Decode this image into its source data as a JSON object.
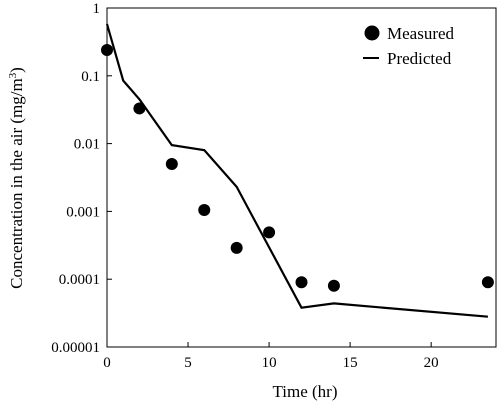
{
  "chart_data": {
    "type": "scatter",
    "xlabel": "Time (hr)",
    "ylabel_main": "Concentration in the air (mg/m",
    "ylabel_sup": "3",
    "ylabel_close": ")",
    "xlim": [
      0,
      24
    ],
    "ylim": [
      1e-05,
      1
    ],
    "yscale": "log",
    "grid": false,
    "legend_position": "top-right",
    "x_ticks": [
      0,
      5,
      10,
      15,
      20
    ],
    "x_tick_labels": [
      "0",
      "5",
      "10",
      "15",
      "20"
    ],
    "y_ticks": [
      1,
      0.1,
      0.01,
      0.001,
      0.0001,
      1e-05
    ],
    "y_tick_labels": [
      "1",
      "0.1",
      "0.01",
      "0.001",
      "0.0001",
      "0.00001"
    ],
    "series": [
      {
        "name": "Measured",
        "mark": "marker",
        "color": "#000000",
        "points": [
          {
            "x": 0,
            "y": 0.24
          },
          {
            "x": 2,
            "y": 0.033
          },
          {
            "x": 4,
            "y": 0.005
          },
          {
            "x": 6,
            "y": 0.00105
          },
          {
            "x": 8,
            "y": 0.00029
          },
          {
            "x": 10,
            "y": 0.00049
          },
          {
            "x": 12,
            "y": 9e-05
          },
          {
            "x": 14,
            "y": 8e-05
          },
          {
            "x": 23.5,
            "y": 9e-05
          }
        ]
      },
      {
        "name": "Predicted",
        "mark": "line",
        "color": "#000000",
        "points": [
          {
            "x": 0,
            "y": 0.58
          },
          {
            "x": 1,
            "y": 0.085
          },
          {
            "x": 2,
            "y": 0.045
          },
          {
            "x": 4,
            "y": 0.0095
          },
          {
            "x": 6,
            "y": 0.008
          },
          {
            "x": 8,
            "y": 0.0023
          },
          {
            "x": 12,
            "y": 3.8e-05
          },
          {
            "x": 14,
            "y": 4.4e-05
          },
          {
            "x": 23.5,
            "y": 2.8e-05
          }
        ]
      }
    ]
  }
}
